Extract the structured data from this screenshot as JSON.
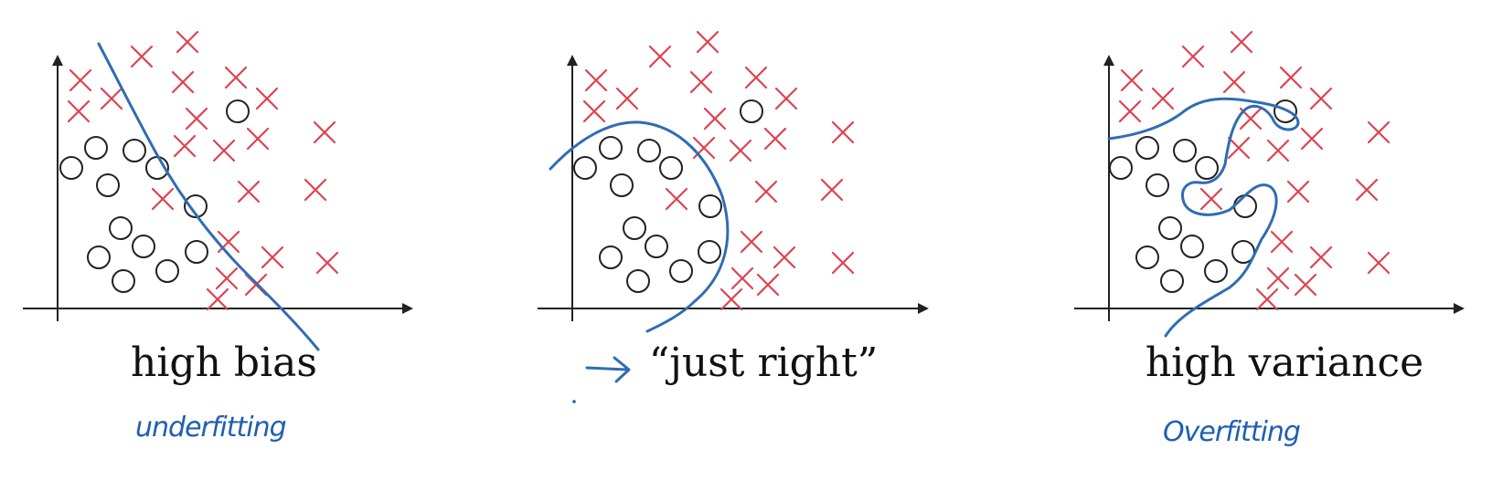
{
  "colors": {
    "cross": "#e0414f",
    "circle": "#222222",
    "boundary": "#2f6db3",
    "handwriting": "#1f5fb0",
    "axis": "#222222"
  },
  "panels": [
    {
      "id": "high-bias",
      "caption": "high bias",
      "note": "underfitting",
      "fit": "linear"
    },
    {
      "id": "just-right",
      "caption": "“just right”",
      "note": "",
      "fit": "curved"
    },
    {
      "id": "high-variance",
      "caption": "high variance",
      "note": "Overfitting",
      "fit": "wiggly"
    }
  ]
}
